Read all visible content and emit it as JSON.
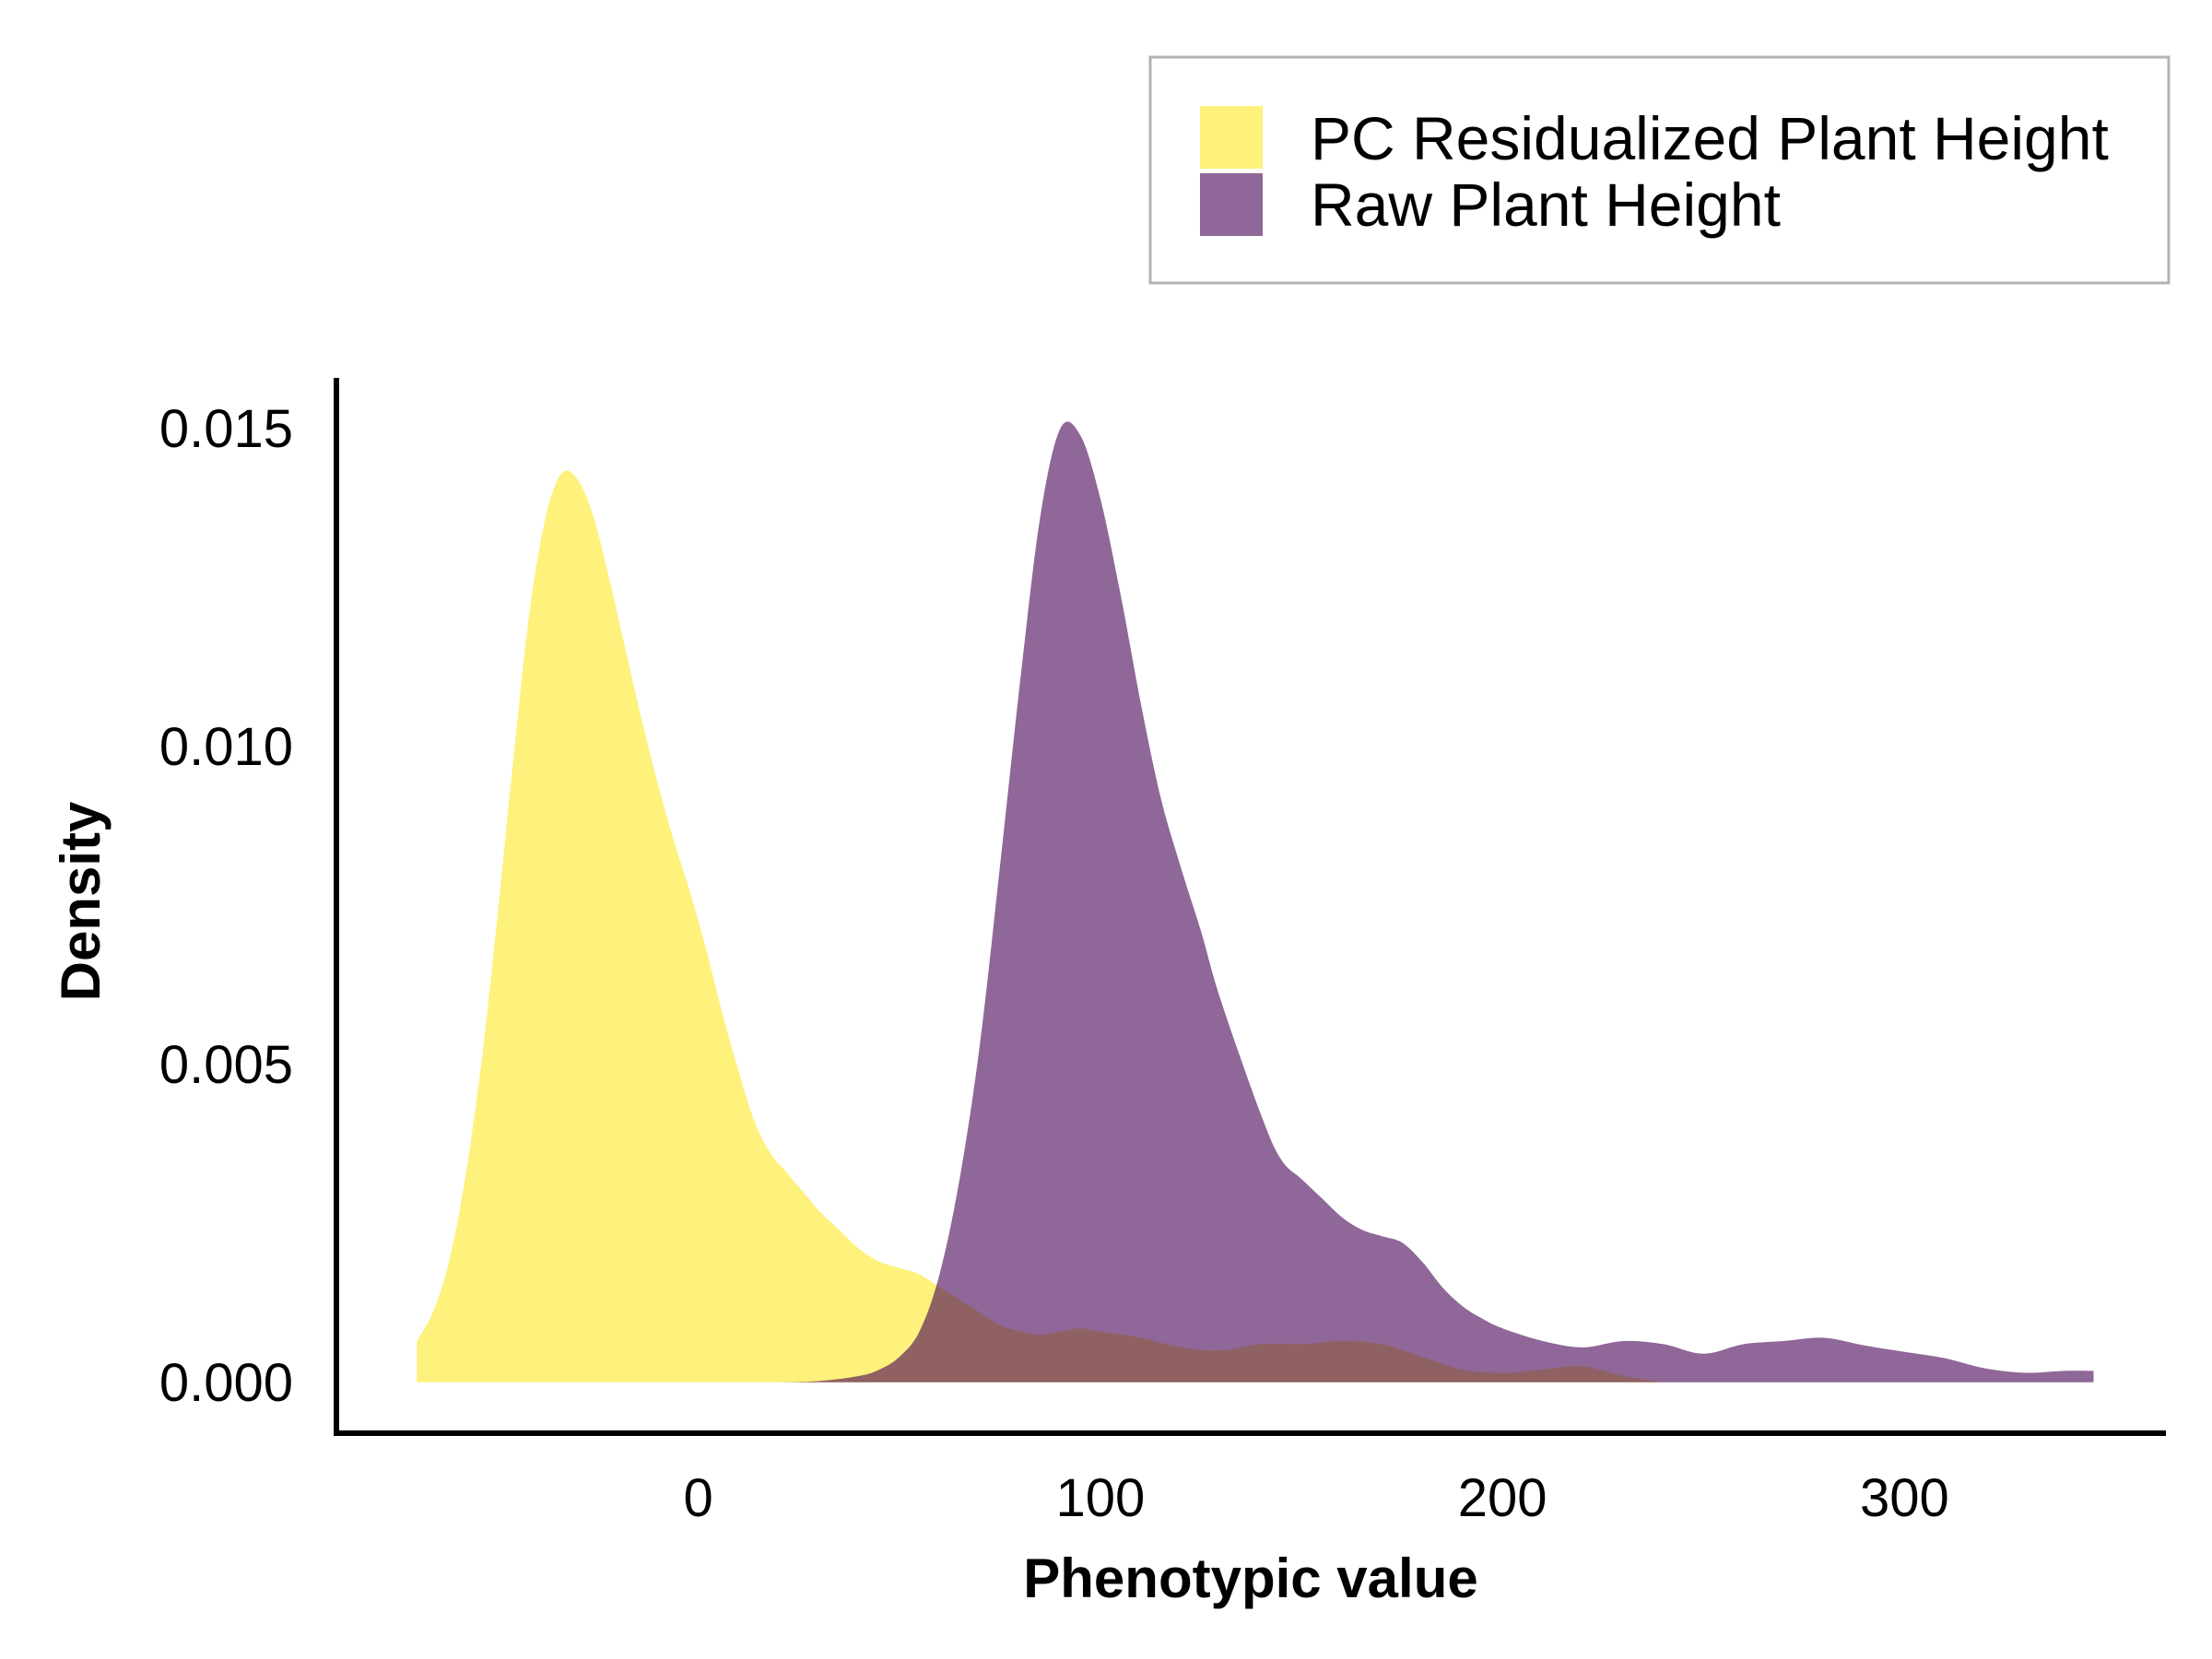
{
  "chart_data": {
    "type": "area",
    "title": "",
    "xlabel": "Phenotypic value",
    "ylabel": "Density",
    "xlim": [
      -90,
      365
    ],
    "ylim": [
      -0.0008,
      0.0158
    ],
    "xticks": [
      {
        "value": 0,
        "label": "0"
      },
      {
        "value": 100,
        "label": "100"
      },
      {
        "value": 200,
        "label": "200"
      },
      {
        "value": 300,
        "label": "300"
      }
    ],
    "yticks": [
      {
        "value": 0,
        "label": "0.000"
      },
      {
        "value": 0.005,
        "label": "0.005"
      },
      {
        "value": 0.01,
        "label": "0.010"
      },
      {
        "value": 0.015,
        "label": "0.015"
      }
    ],
    "grid": false,
    "legend_position": "top-right",
    "series": [
      {
        "name": "PC Residualized Plant Height",
        "color": "#FDE725",
        "opacity": 0.6,
        "x": [
          -70,
          -66,
          -62,
          -58,
          -54,
          -50,
          -46,
          -42,
          -38,
          -34,
          -30,
          -26,
          -22,
          -18,
          -14,
          -10,
          -6,
          -2,
          2,
          6,
          10,
          14,
          18,
          22,
          26,
          30,
          35,
          40,
          45,
          50,
          55,
          60,
          65,
          70,
          75,
          80,
          85,
          90,
          95,
          100,
          110,
          120,
          130,
          140,
          150,
          160,
          170,
          180,
          190,
          200,
          210,
          220,
          230,
          240
        ],
        "y": [
          0.00065,
          0.0011,
          0.0019,
          0.0032,
          0.005,
          0.0073,
          0.0098,
          0.0121,
          0.0136,
          0.0143,
          0.0142,
          0.0136,
          0.0126,
          0.0115,
          0.0104,
          0.0094,
          0.0085,
          0.0077,
          0.0068,
          0.0058,
          0.0049,
          0.0041,
          0.0036,
          0.0033,
          0.003,
          0.0027,
          0.0024,
          0.0021,
          0.0019,
          0.0018,
          0.0017,
          0.0015,
          0.0013,
          0.0011,
          0.0009,
          0.0008,
          0.00075,
          0.0008,
          0.00085,
          0.0008,
          0.0007,
          0.00055,
          0.0005,
          0.0006,
          0.0006,
          0.00065,
          0.0006,
          0.0004,
          0.0002,
          0.00015,
          0.0002,
          0.00025,
          0.0001,
          0.0
        ],
        "stroke": false
      },
      {
        "name": "Raw Plant Height",
        "color": "#440154",
        "opacity": 0.6,
        "x": [
          20,
          30,
          40,
          45,
          50,
          55,
          60,
          65,
          70,
          75,
          80,
          85,
          90,
          95,
          100,
          105,
          110,
          115,
          120,
          125,
          130,
          140,
          145,
          150,
          155,
          160,
          165,
          170,
          175,
          180,
          185,
          190,
          195,
          200,
          210,
          220,
          230,
          240,
          250,
          260,
          270,
          280,
          290,
          300,
          310,
          320,
          330,
          340,
          347
        ],
        "y": [
          0.0,
          2e-05,
          0.0001,
          0.0002,
          0.0004,
          0.0008,
          0.0017,
          0.0032,
          0.0053,
          0.0081,
          0.011,
          0.0136,
          0.015,
          0.0149,
          0.0139,
          0.0124,
          0.0107,
          0.0092,
          0.0081,
          0.0071,
          0.006,
          0.0042,
          0.0035,
          0.0032,
          0.0029,
          0.0026,
          0.0024,
          0.0023,
          0.0022,
          0.0019,
          0.0015,
          0.0012,
          0.001,
          0.00085,
          0.00065,
          0.00055,
          0.00065,
          0.0006,
          0.00045,
          0.0006,
          0.00065,
          0.0007,
          0.00058,
          0.00048,
          0.00038,
          0.00022,
          0.00015,
          0.00018,
          0.00018
        ],
        "stroke": false
      }
    ]
  }
}
